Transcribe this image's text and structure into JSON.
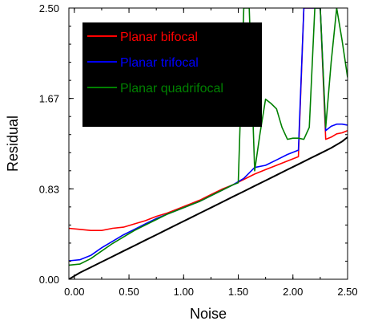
{
  "chart_data": {
    "type": "line",
    "title": "",
    "xlabel": "Noise",
    "ylabel": "Residual",
    "xlim": [
      -0.05,
      2.5
    ],
    "ylim": [
      0.0,
      2.5
    ],
    "x_ticks": [
      "0.00",
      "0.50",
      "1.00",
      "1.50",
      "2.00",
      "2.50"
    ],
    "y_ticks": [
      "0.00",
      "0.83",
      "1.67",
      "2.50"
    ],
    "grid": false,
    "legend_placement": "top-left",
    "legend_background": "#000000",
    "series": [
      {
        "name": "Planar bifocal",
        "color": "#ff0000",
        "x": [
          -0.05,
          0.05,
          0.15,
          0.25,
          0.35,
          0.45,
          0.55,
          0.65,
          0.75,
          0.85,
          0.95,
          1.05,
          1.15,
          1.25,
          1.35,
          1.45,
          1.55,
          1.65,
          1.75,
          1.85,
          1.95,
          2.05,
          2.1,
          2.15,
          2.2,
          2.25,
          2.3,
          2.35,
          2.4,
          2.45,
          2.5
        ],
        "y": [
          0.47,
          0.46,
          0.45,
          0.45,
          0.47,
          0.48,
          0.51,
          0.54,
          0.58,
          0.61,
          0.65,
          0.69,
          0.73,
          0.78,
          0.83,
          0.87,
          0.92,
          0.97,
          1.01,
          1.05,
          1.09,
          1.13,
          2.5,
          2.5,
          2.5,
          2.5,
          1.29,
          1.31,
          1.34,
          1.35,
          1.37
        ]
      },
      {
        "name": "Planar trifocal",
        "color": "#0000ff",
        "x": [
          -0.05,
          0.05,
          0.15,
          0.25,
          0.35,
          0.45,
          0.55,
          0.65,
          0.75,
          0.85,
          0.95,
          1.05,
          1.15,
          1.25,
          1.35,
          1.45,
          1.55,
          1.65,
          1.75,
          1.85,
          1.95,
          2.05,
          2.1,
          2.15,
          2.2,
          2.25,
          2.3,
          2.35,
          2.4,
          2.45,
          2.5
        ],
        "y": [
          0.17,
          0.18,
          0.22,
          0.29,
          0.35,
          0.41,
          0.46,
          0.51,
          0.56,
          0.6,
          0.64,
          0.68,
          0.72,
          0.77,
          0.82,
          0.87,
          0.93,
          1.03,
          1.05,
          1.1,
          1.15,
          1.19,
          2.5,
          2.5,
          2.5,
          2.5,
          1.37,
          1.41,
          1.43,
          1.43,
          1.42
        ]
      },
      {
        "name": "Planar quadrifocal",
        "color": "#008000",
        "x": [
          -0.05,
          0.05,
          0.15,
          0.25,
          0.35,
          0.45,
          0.55,
          0.65,
          0.75,
          0.85,
          0.95,
          1.05,
          1.15,
          1.25,
          1.35,
          1.45,
          1.5,
          1.55,
          1.6,
          1.65,
          1.7,
          1.75,
          1.8,
          1.85,
          1.9,
          1.95,
          2.0,
          2.05,
          2.1,
          2.15,
          2.2,
          2.25,
          2.3,
          2.35,
          2.4,
          2.45,
          2.5
        ],
        "y": [
          0.13,
          0.14,
          0.19,
          0.26,
          0.33,
          0.39,
          0.45,
          0.5,
          0.55,
          0.6,
          0.64,
          0.68,
          0.72,
          0.77,
          0.82,
          0.87,
          0.89,
          2.5,
          2.5,
          1.0,
          1.35,
          1.66,
          1.62,
          1.57,
          1.4,
          1.29,
          1.3,
          1.3,
          1.29,
          1.4,
          2.5,
          2.5,
          1.4,
          2.0,
          2.5,
          2.2,
          1.86
        ]
      },
      {
        "name": "",
        "color": "#000000",
        "x": [
          -0.05,
          0.05,
          0.15,
          0.25,
          0.35,
          0.45,
          0.55,
          0.65,
          0.75,
          0.85,
          0.95,
          1.05,
          1.15,
          1.25,
          1.35,
          1.45,
          1.55,
          1.65,
          1.75,
          1.85,
          1.95,
          2.05,
          2.15,
          2.25,
          2.35,
          2.45,
          2.5
        ],
        "y": [
          0.0,
          0.06,
          0.11,
          0.16,
          0.21,
          0.26,
          0.31,
          0.36,
          0.41,
          0.46,
          0.51,
          0.56,
          0.61,
          0.66,
          0.71,
          0.76,
          0.81,
          0.86,
          0.91,
          0.96,
          1.01,
          1.06,
          1.11,
          1.16,
          1.21,
          1.27,
          1.31
        ]
      }
    ]
  }
}
